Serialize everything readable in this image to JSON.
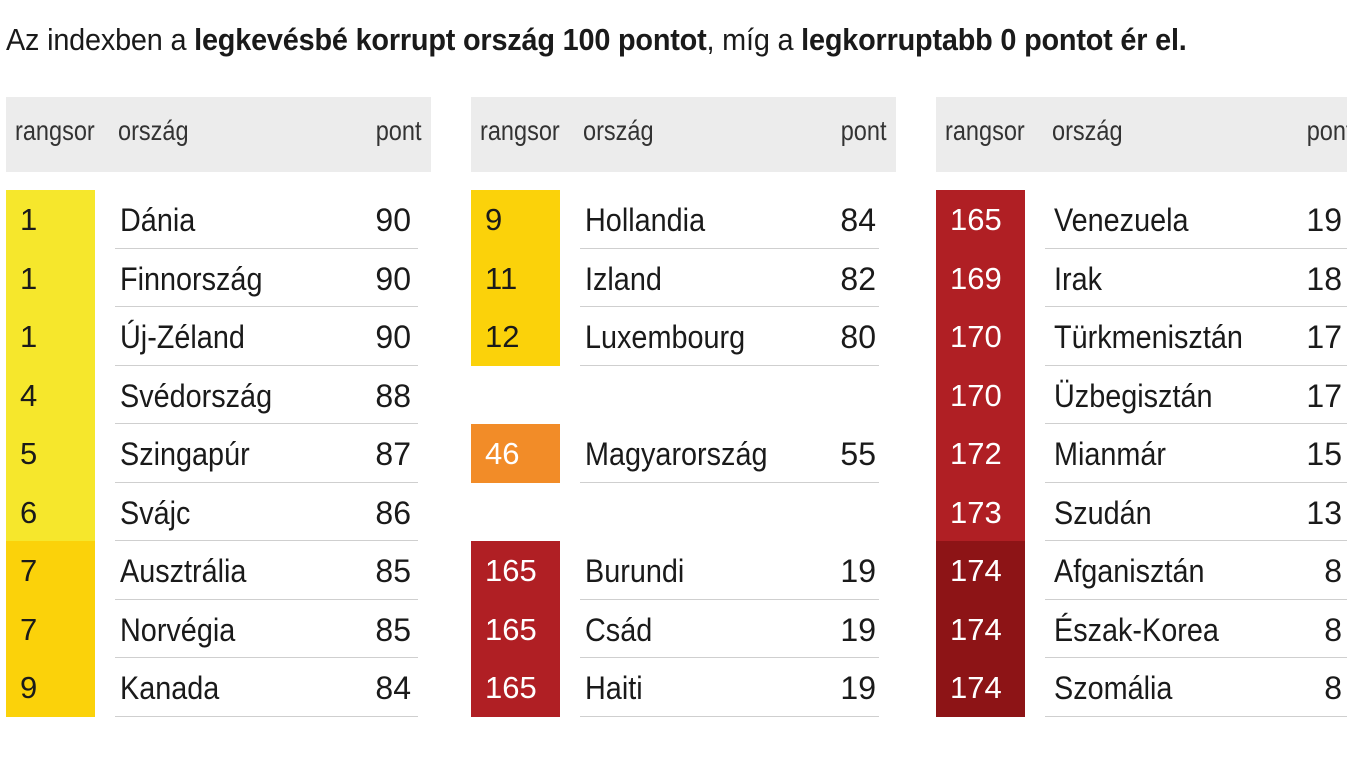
{
  "headline": {
    "part1": "Az indexben a ",
    "bold1": "legkevésbé korrupt ország 100 pontot",
    "part2": ", míg a ",
    "bold2": "legkorruptabb 0 pontot ér el."
  },
  "columns": {
    "rank": "rangsor",
    "country": "ország",
    "score": "pont"
  },
  "colors": {
    "yellow": "#f6e72c",
    "gold": "#fbd20a",
    "orange": "#f28c28",
    "red": "#b01f24",
    "darkred": "#8d1416"
  },
  "tables": [
    {
      "rows": [
        {
          "rank": "1",
          "country": "Dánia",
          "score": "90",
          "color": "yellow"
        },
        {
          "rank": "1",
          "country": "Finnország",
          "score": "90",
          "color": "yellow"
        },
        {
          "rank": "1",
          "country": "Új-Zéland",
          "score": "90",
          "color": "yellow"
        },
        {
          "rank": "4",
          "country": "Svédország",
          "score": "88",
          "color": "yellow"
        },
        {
          "rank": "5",
          "country": "Szingapúr",
          "score": "87",
          "color": "yellow"
        },
        {
          "rank": "6",
          "country": "Svájc",
          "score": "86",
          "color": "yellow"
        },
        {
          "rank": "7",
          "country": "Ausztrália",
          "score": "85",
          "color": "gold"
        },
        {
          "rank": "7",
          "country": "Norvégia",
          "score": "85",
          "color": "gold"
        },
        {
          "rank": "9",
          "country": "Kanada",
          "score": "84",
          "color": "gold"
        }
      ]
    },
    {
      "rows": [
        {
          "rank": "9",
          "country": "Hollandia",
          "score": "84",
          "color": "gold"
        },
        {
          "rank": "11",
          "country": "Izland",
          "score": "82",
          "color": "gold"
        },
        {
          "rank": "12",
          "country": "Luxembourg",
          "score": "80",
          "color": "gold"
        },
        null,
        {
          "rank": "46",
          "country": "Magyarország",
          "score": "55",
          "color": "orange"
        },
        null,
        {
          "rank": "165",
          "country": "Burundi",
          "score": "19",
          "color": "red"
        },
        {
          "rank": "165",
          "country": "Csád",
          "score": "19",
          "color": "red"
        },
        {
          "rank": "165",
          "country": "Haiti",
          "score": "19",
          "color": "red"
        }
      ]
    },
    {
      "rows": [
        {
          "rank": "165",
          "country": "Venezuela",
          "score": "19",
          "color": "red"
        },
        {
          "rank": "169",
          "country": "Irak",
          "score": "18",
          "color": "red"
        },
        {
          "rank": "170",
          "country": "Türkmenisztán",
          "score": "17",
          "color": "red"
        },
        {
          "rank": "170",
          "country": "Üzbegisztán",
          "score": "17",
          "color": "red"
        },
        {
          "rank": "172",
          "country": "Mianmár",
          "score": "15",
          "color": "red"
        },
        {
          "rank": "173",
          "country": "Szudán",
          "score": "13",
          "color": "red"
        },
        {
          "rank": "174",
          "country": "Afganisztán",
          "score": "8",
          "color": "darkred"
        },
        {
          "rank": "174",
          "country": "Észak-Korea",
          "score": "8",
          "color": "darkred"
        },
        {
          "rank": "174",
          "country": "Szomália",
          "score": "8",
          "color": "darkred"
        }
      ]
    }
  ]
}
